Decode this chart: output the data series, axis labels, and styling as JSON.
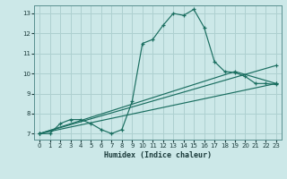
{
  "xlabel": "Humidex (Indice chaleur)",
  "bg_color": "#cce8e8",
  "grid_color": "#aed0d0",
  "line_color": "#1a6e60",
  "xlim": [
    -0.5,
    23.5
  ],
  "ylim": [
    6.7,
    13.4
  ],
  "yticks": [
    7,
    8,
    9,
    10,
    11,
    12,
    13
  ],
  "xticks": [
    0,
    1,
    2,
    3,
    4,
    5,
    6,
    7,
    8,
    9,
    10,
    11,
    12,
    13,
    14,
    15,
    16,
    17,
    18,
    19,
    20,
    21,
    22,
    23
  ],
  "series1_x": [
    0,
    1,
    2,
    3,
    4,
    5,
    6,
    7,
    8,
    9,
    10,
    11,
    12,
    13,
    14,
    15,
    16,
    17,
    18,
    19,
    20,
    21,
    22,
    23
  ],
  "series1_y": [
    7.0,
    7.0,
    7.5,
    7.7,
    7.7,
    7.5,
    7.2,
    7.0,
    7.2,
    8.6,
    11.5,
    11.7,
    12.4,
    13.0,
    12.9,
    13.2,
    12.3,
    10.6,
    10.1,
    10.05,
    9.85,
    9.5,
    9.5,
    9.45
  ],
  "trend1_x": [
    0,
    23
  ],
  "trend1_y": [
    7.0,
    10.4
  ],
  "trend2_x": [
    0,
    19,
    23
  ],
  "trend2_y": [
    7.0,
    10.1,
    9.5
  ],
  "trend3_x": [
    0,
    23
  ],
  "trend3_y": [
    7.0,
    9.5
  ]
}
